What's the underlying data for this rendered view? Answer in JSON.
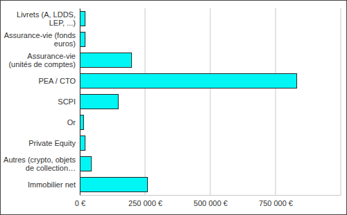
{
  "chart_data": {
    "type": "bar",
    "orientation": "horizontal",
    "categories": [
      "Livrets (A, LDDS, LEP, ...)",
      "Assurance-vie (fonds euros)",
      "Assurance-vie (unités de comptes)",
      "PEA / CTO",
      "SCPI",
      "Or",
      "Private Equity",
      "Autres (crypto, objets de collection…",
      "Immobilier net"
    ],
    "values": [
      19000,
      19000,
      197000,
      830000,
      146000,
      13000,
      19000,
      43000,
      258000
    ],
    "color": "#00f5f5",
    "xlim": [
      0,
      1000000
    ],
    "xticks": [
      {
        "value": 0,
        "label": "0 €"
      },
      {
        "value": 250000,
        "label": "250 000 €"
      },
      {
        "value": 500000,
        "label": "500 000 €"
      },
      {
        "value": 750000,
        "label": "750 000 €"
      }
    ],
    "grid": true
  }
}
